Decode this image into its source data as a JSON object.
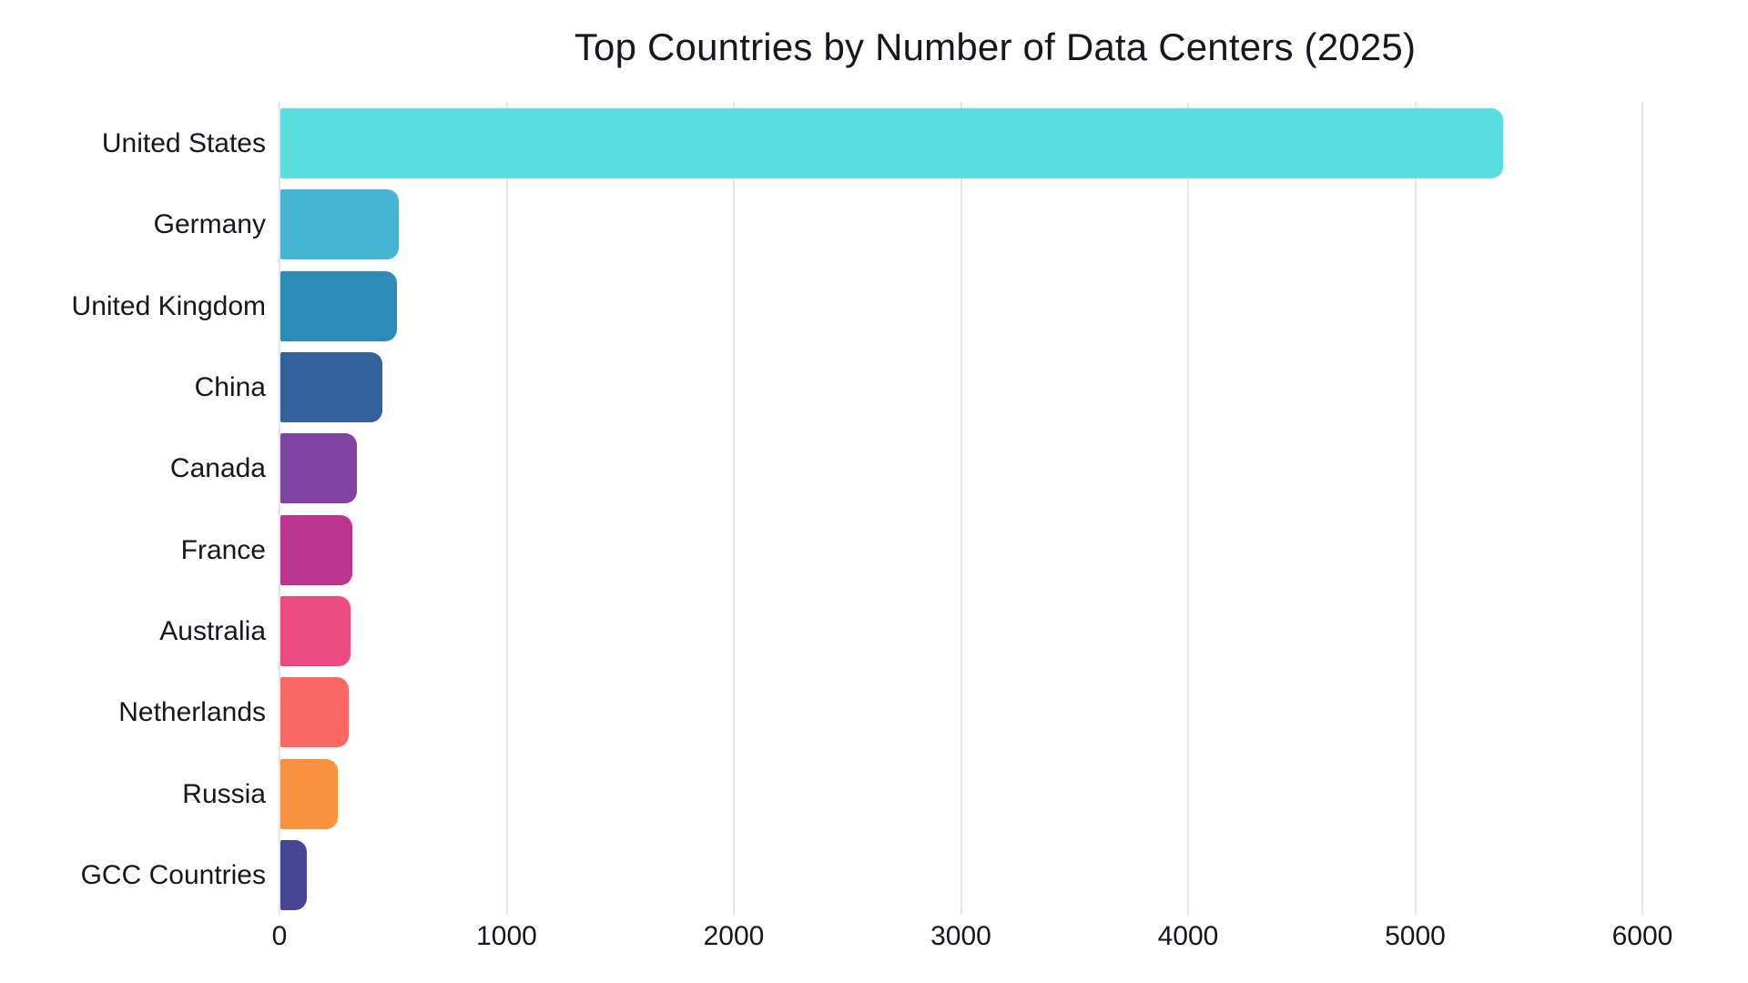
{
  "chart_data": {
    "type": "bar",
    "orientation": "horizontal",
    "title": "Top Countries by Number of Data Centers (2025)",
    "categories": [
      "United States",
      "Germany",
      "United Kingdom",
      "China",
      "Canada",
      "France",
      "Australia",
      "Netherlands",
      "Russia",
      "GCC Countries"
    ],
    "values": [
      5381,
      521,
      514,
      449,
      336,
      315,
      307,
      300,
      251,
      115
    ],
    "bar_colors": [
      "#59DDE1",
      "#43B4D2",
      "#2E8AB6",
      "#33629A",
      "#7E44A0",
      "#BB348E",
      "#EC4B82",
      "#F96863",
      "#F8923E",
      "#474695"
    ],
    "xlabel": "",
    "ylabel": "",
    "xlim": [
      0,
      6000
    ],
    "x_ticks": [
      0,
      1000,
      2000,
      3000,
      4000,
      5000,
      6000
    ],
    "x_tick_labels": [
      "0",
      "1000",
      "2000",
      "3000",
      "4000",
      "5000",
      "6000"
    ],
    "grid": "vertical-gridlines-on",
    "gridline_color": "#e4e5e9",
    "background_color": "#ffffff",
    "text_color": "#15171c",
    "legend": "none"
  }
}
